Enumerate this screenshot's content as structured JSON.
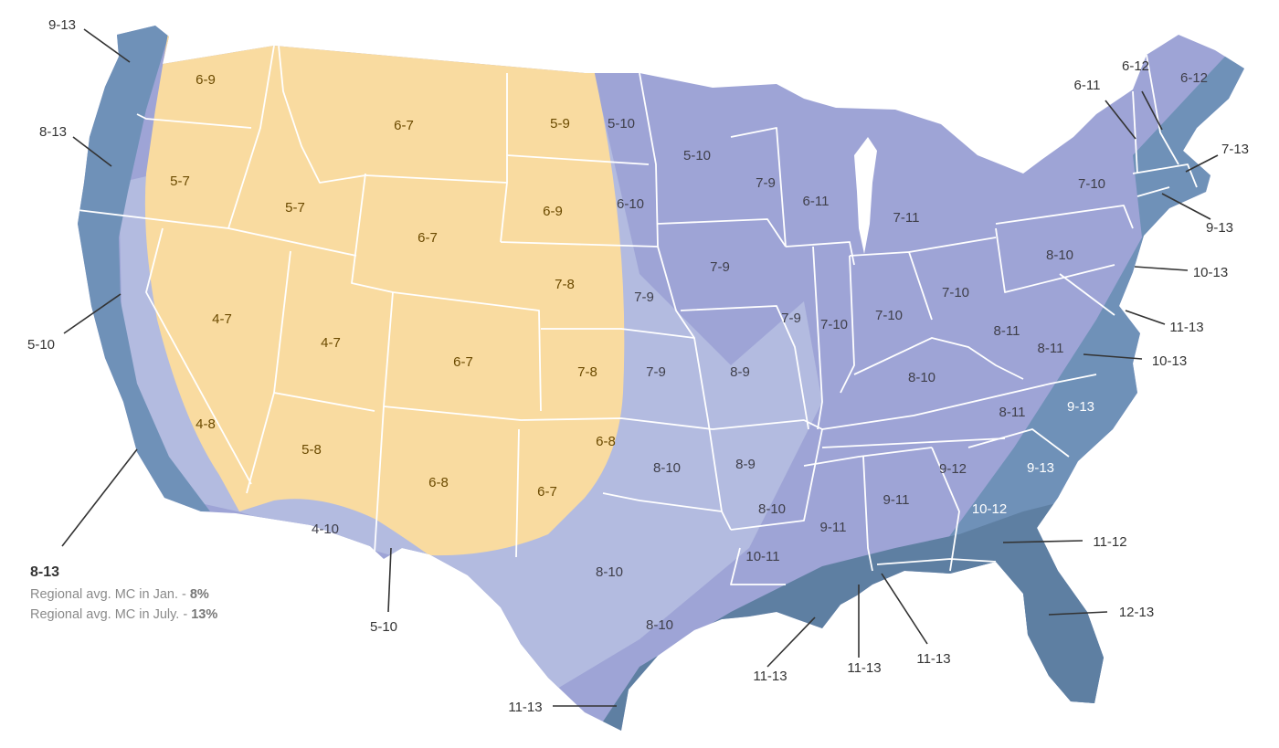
{
  "colors": {
    "dry_zone": "#f9dba0",
    "mid_zone": "#aeb6dd",
    "interior_zone": "#9ea4d6",
    "coastal_zone": "#6f91b8",
    "gulf_zone": "#5e7fa2",
    "border": "#ffffff",
    "leader": "#333333"
  },
  "inner_labels": [
    "6-9",
    "6-7",
    "5-9",
    "5-10",
    "5-10",
    "5-7",
    "5-7",
    "6-7",
    "6-9",
    "6-10",
    "7-9",
    "7-9",
    "6-11",
    "7-11",
    "4-7",
    "4-7",
    "6-7",
    "7-8",
    "7-8",
    "7-9",
    "7-9",
    "7-9",
    "7-10",
    "7-10",
    "7-10",
    "7-10",
    "8-11",
    "8-11",
    "8-9",
    "8-10",
    "8-10",
    "4-8",
    "5-8",
    "6-8",
    "6-8",
    "6-7",
    "8-10",
    "8-9",
    "8-10",
    "9-11",
    "9-11",
    "9-12",
    "10-12",
    "4-10",
    "8-10",
    "10-11",
    "8-10",
    "8-11",
    "9-13",
    "9-13"
  ],
  "callout_labels": [
    "9-13",
    "8-13",
    "5-10",
    "6-11",
    "6-12",
    "6-12",
    "7-13",
    "9-13",
    "10-13",
    "11-13",
    "10-13",
    "11-12",
    "12-13",
    "11-13",
    "11-13",
    "11-13",
    "11-13",
    "5-10"
  ],
  "legend": {
    "range": "8-13",
    "jan_label": "Regional avg. MC in Jan. -",
    "jan_value": "8%",
    "july_label": "Regional avg. MC in July. -",
    "july_value": "13%"
  }
}
